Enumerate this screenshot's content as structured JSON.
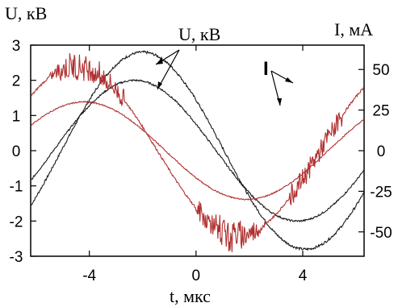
{
  "chart_data": {
    "type": "line",
    "x_label": "t, мкс",
    "y_left_label": "U, кВ",
    "y_right_label": "I, мА",
    "annotation_voltage": "U, кВ",
    "annotation_current": "I",
    "x_range": [
      -6.2,
      6.3
    ],
    "y_left_range": [
      -3,
      3
    ],
    "y_right_range": [
      -65,
      65
    ],
    "x_ticks": [
      -4,
      0,
      4
    ],
    "y_left_ticks": [
      3,
      2,
      1,
      0,
      -1,
      -2,
      -3
    ],
    "y_right_ticks": [
      50,
      25,
      0,
      -25,
      -50
    ],
    "colors": {
      "voltage": "#1a1a1a",
      "current": "#b03030"
    },
    "series": [
      {
        "axis": "left",
        "kind": "voltage",
        "amplitude": 2.8,
        "peak_t": -2.0,
        "period": 12.2
      },
      {
        "axis": "left",
        "kind": "voltage",
        "amplitude": 2.0,
        "peak_t": -2.3,
        "period": 12.2
      },
      {
        "axis": "right",
        "kind": "current",
        "amplitude": 52,
        "peak_t": -4.5,
        "period": 12.2,
        "noisy": true
      },
      {
        "axis": "right",
        "kind": "current",
        "amplitude": 30,
        "peak_t": -4.2,
        "period": 12.2,
        "noisy": false
      }
    ]
  }
}
